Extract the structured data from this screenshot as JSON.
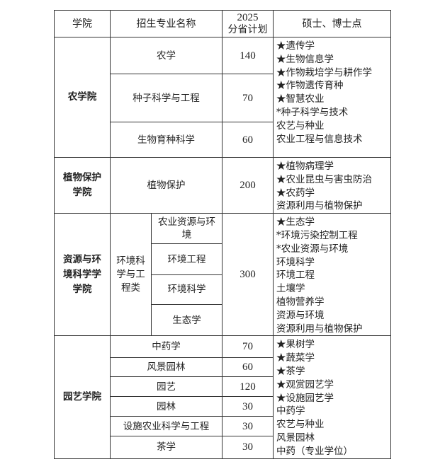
{
  "header": {
    "college": "学院",
    "major": "招生专业名称",
    "plan_year": "2025",
    "plan_label": "分省计划",
    "degrees": "硕士、博士点"
  },
  "colleges": [
    {
      "name": "农学院",
      "majors": [
        {
          "name": "农学",
          "plan": "140"
        },
        {
          "name": "种子科学与工程",
          "plan": "70"
        },
        {
          "name": "生物育种科学",
          "plan": "60"
        }
      ],
      "degrees": [
        "★遗传学",
        "★生物信息学",
        "★作物栽培学与耕作学",
        "★作物遗传育种",
        "★智慧农业",
        "*种子科学与技术",
        "农艺与种业",
        "农业工程与信息技术"
      ]
    },
    {
      "name_lines": [
        "植物保护",
        "学院"
      ],
      "majors": [
        {
          "name": "植物保护",
          "plan": "200"
        }
      ],
      "degrees": [
        "★植物病理学",
        "★农业昆虫与害虫防治",
        "★农药学",
        "资源利用与植物保护"
      ]
    },
    {
      "name_lines": [
        "资源与环",
        "境科学学",
        "学院"
      ],
      "category_lines": [
        "环境科",
        "学与工",
        "程类"
      ],
      "plan": "300",
      "majors": [
        {
          "name_lines": [
            "农业资源与环",
            "境"
          ]
        },
        {
          "name": "环境工程"
        },
        {
          "name": "环境科学"
        },
        {
          "name": "生态学"
        }
      ],
      "degrees": [
        "★生态学",
        "*环境污染控制工程",
        "*农业资源与环境",
        "环境科学",
        "环境工程",
        "土壤学",
        "植物营养学",
        "资源与环境",
        "资源利用与植物保护"
      ]
    },
    {
      "name": "园艺学院",
      "majors": [
        {
          "name": "中药学",
          "plan": "70"
        },
        {
          "name": "风景园林",
          "plan": "60"
        },
        {
          "name": "园艺",
          "plan": "120"
        },
        {
          "name": "园林",
          "plan": "30"
        },
        {
          "name": "设施农业科学与工程",
          "plan": "30"
        },
        {
          "name": "茶学",
          "plan": "30"
        }
      ],
      "degrees": [
        "★果树学",
        "★蔬菜学",
        "★茶学",
        "★观赏园艺学",
        "★设施园艺学",
        "中药学",
        "农艺与种业",
        "风景园林",
        "中药（专业学位）"
      ]
    }
  ]
}
